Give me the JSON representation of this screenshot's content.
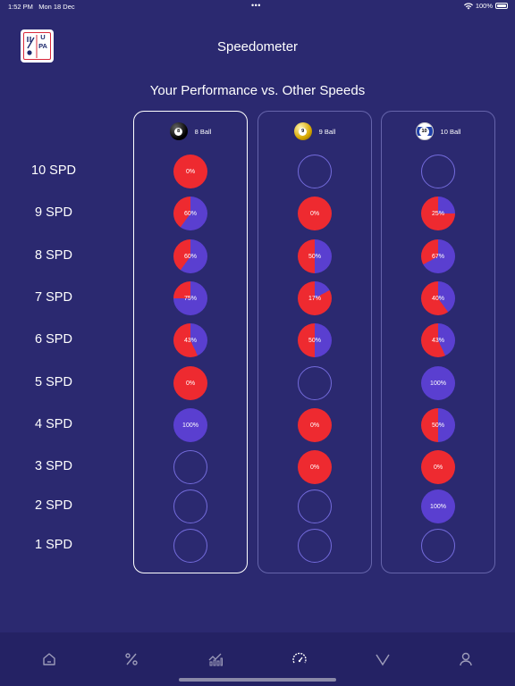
{
  "status_bar": {
    "time": "1:52 PM",
    "date": "Mon 18 Dec",
    "battery": "100%",
    "dots": "•••"
  },
  "header": {
    "title": "Speedometer",
    "logo_letters": "UPA"
  },
  "subtitle": "Your Performance vs. Other Speeds",
  "colors": {
    "background": "#2b2970",
    "loss": "#ee2a30",
    "win": "#5a3fd0",
    "empty_ring": "#8c82ff"
  },
  "speed_rows": [
    "10 SPD",
    "9 SPD",
    "8 SPD",
    "7 SPD",
    "6 SPD",
    "5 SPD",
    "4 SPD",
    "3 SPD",
    "2 SPD",
    "1 SPD"
  ],
  "columns": [
    {
      "label": "8 Ball",
      "ball_number": "8",
      "icon": "eight-ball-icon",
      "values": [
        "0%",
        "60%",
        "60%",
        "75%",
        "43%",
        "0%",
        "100%",
        null,
        null,
        null
      ]
    },
    {
      "label": "9 Ball",
      "ball_number": "9",
      "icon": "nine-ball-icon",
      "values": [
        null,
        "0%",
        "50%",
        "17%",
        "50%",
        null,
        "0%",
        "0%",
        null,
        null
      ]
    },
    {
      "label": "10 Ball",
      "ball_number": "10",
      "icon": "ten-ball-icon",
      "values": [
        null,
        "25%",
        "67%",
        "40%",
        "43%",
        "100%",
        "50%",
        "0%",
        "100%",
        null
      ]
    }
  ],
  "nav": [
    {
      "name": "home-icon"
    },
    {
      "name": "percent-icon"
    },
    {
      "name": "stats-chart-icon"
    },
    {
      "name": "speedometer-icon"
    },
    {
      "name": "chevron-down-icon"
    },
    {
      "name": "profile-icon"
    }
  ]
}
